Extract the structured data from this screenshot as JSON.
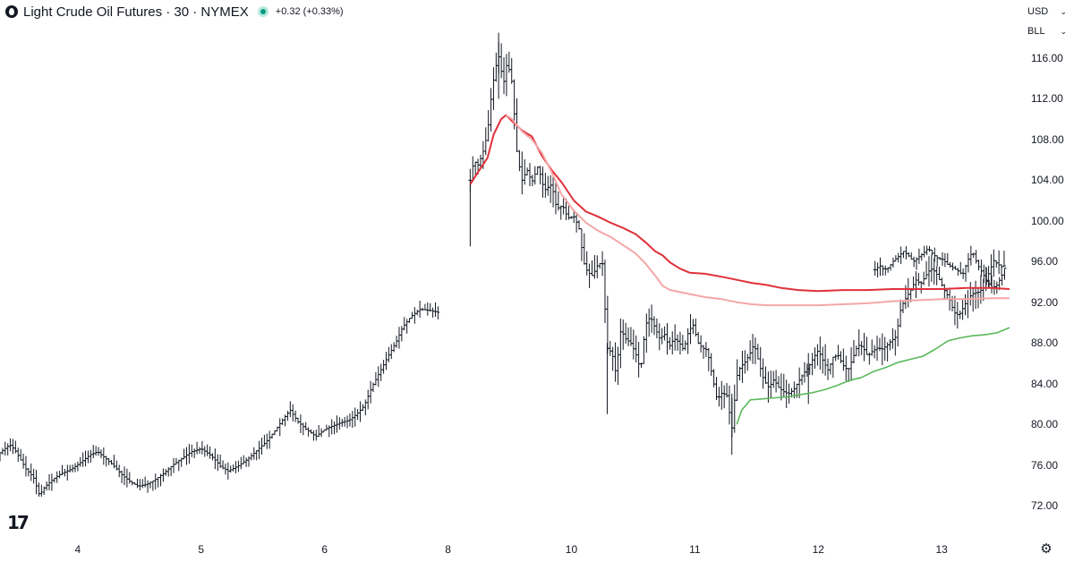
{
  "header": {
    "symbol_title": "Light Crude Oil Futures · 30 · NYMEX",
    "change": "+0.32 (+0.33%)"
  },
  "axis_controls": {
    "currency": "USD",
    "unit": "BLL"
  },
  "colors": {
    "bars": "#131722",
    "vwap_dark_red": "#e0303a",
    "vwap_light_red": "#f4a6a8",
    "vwap_green": "#5cb85c",
    "status_dot": "#089981"
  },
  "icons": {
    "logo": "tradingview-logo-icon",
    "status": "market-open-dot-icon",
    "settings": "gear-icon"
  },
  "chart_data": {
    "type": "ohlc",
    "interval": "30",
    "ylim": [
      70,
      119
    ],
    "y_ticks": [
      "116.00",
      "112.00",
      "108.00",
      "104.00",
      "100.00",
      "96.00",
      "92.00",
      "88.00",
      "84.00",
      "80.00",
      "76.00",
      "72.00"
    ],
    "x_ticks": [
      {
        "label": "4",
        "x": 0.5
      },
      {
        "label": "5",
        "x": 1.5
      },
      {
        "label": "6",
        "x": 2.5
      },
      {
        "label": "8",
        "x": 3.5
      },
      {
        "label": "10",
        "x": 4.5
      },
      {
        "label": "11",
        "x": 5.5
      },
      {
        "label": "12",
        "x": 6.5
      },
      {
        "label": "13",
        "x": 7.5
      }
    ],
    "xlim": [
      -0.13,
      8.05
    ],
    "price_path": [
      [
        -0.13,
        77.2
      ],
      [
        -0.05,
        78.0
      ],
      [
        0.0,
        77.3
      ],
      [
        0.08,
        75.6
      ],
      [
        0.14,
        74.8
      ],
      [
        0.19,
        73.0
      ],
      [
        0.23,
        73.8
      ],
      [
        0.3,
        74.6
      ],
      [
        0.36,
        75.1
      ],
      [
        0.45,
        75.6
      ],
      [
        0.53,
        76.3
      ],
      [
        0.6,
        77.0
      ],
      [
        0.66,
        77.3
      ],
      [
        0.73,
        76.6
      ],
      [
        0.8,
        75.8
      ],
      [
        0.86,
        75.0
      ],
      [
        0.93,
        74.3
      ],
      [
        0.99,
        73.9
      ],
      [
        1.06,
        74.1
      ],
      [
        1.12,
        74.5
      ],
      [
        1.2,
        75.2
      ],
      [
        1.27,
        76.0
      ],
      [
        1.34,
        76.6
      ],
      [
        1.42,
        77.3
      ],
      [
        1.5,
        77.6
      ],
      [
        1.57,
        77.0
      ],
      [
        1.62,
        76.4
      ],
      [
        1.66,
        75.8
      ],
      [
        1.72,
        75.4
      ],
      [
        1.8,
        75.9
      ],
      [
        1.88,
        76.6
      ],
      [
        1.95,
        77.4
      ],
      [
        2.02,
        78.2
      ],
      [
        2.1,
        79.4
      ],
      [
        2.17,
        80.6
      ],
      [
        2.22,
        81.4
      ],
      [
        2.28,
        80.3
      ],
      [
        2.35,
        79.5
      ],
      [
        2.43,
        78.8
      ],
      [
        2.5,
        79.5
      ],
      [
        2.58,
        79.9
      ],
      [
        2.64,
        80.2
      ],
      [
        2.7,
        80.4
      ],
      [
        2.76,
        81.0
      ],
      [
        2.82,
        81.8
      ],
      [
        2.88,
        83.6
      ],
      [
        2.95,
        85.2
      ],
      [
        3.01,
        86.6
      ],
      [
        3.08,
        88.1
      ],
      [
        3.13,
        89.5
      ],
      [
        3.2,
        90.6
      ],
      [
        3.27,
        91.3
      ],
      [
        3.35,
        91.2
      ],
      [
        3.42,
        91.0
      ]
    ],
    "price_path_2": [
      [
        3.68,
        104.0
      ],
      [
        3.71,
        106.0
      ],
      [
        3.74,
        105.4
      ],
      [
        3.78,
        106.6
      ],
      [
        3.82,
        108.6
      ],
      [
        3.85,
        112.2
      ],
      [
        3.88,
        114.8
      ],
      [
        3.91,
        116.2
      ],
      [
        3.95,
        113.5
      ],
      [
        3.98,
        115.7
      ],
      [
        4.02,
        113.5
      ],
      [
        4.06,
        106.5
      ],
      [
        4.1,
        104.0
      ],
      [
        4.14,
        105.0
      ],
      [
        4.18,
        103.8
      ],
      [
        4.23,
        105.4
      ],
      [
        4.28,
        103.0
      ],
      [
        4.34,
        103.6
      ],
      [
        4.38,
        101.2
      ],
      [
        4.43,
        101.5
      ],
      [
        4.47,
        100.3
      ],
      [
        4.52,
        100.4
      ],
      [
        4.56,
        99.4
      ],
      [
        4.6,
        95.9
      ],
      [
        4.63,
        95.0
      ],
      [
        4.67,
        94.6
      ],
      [
        4.71,
        95.6
      ],
      [
        4.75,
        96.0
      ],
      [
        4.79,
        87.5
      ],
      [
        4.83,
        87.0
      ],
      [
        4.86,
        85.0
      ],
      [
        4.9,
        89.3
      ],
      [
        4.94,
        88.4
      ],
      [
        4.98,
        88.0
      ],
      [
        5.02,
        87.0
      ],
      [
        5.06,
        85.3
      ],
      [
        5.1,
        89.8
      ],
      [
        5.14,
        90.6
      ],
      [
        5.18,
        89.4
      ],
      [
        5.22,
        88.3
      ],
      [
        5.25,
        89.0
      ],
      [
        5.29,
        87.6
      ],
      [
        5.33,
        88.4
      ],
      [
        5.37,
        88.1
      ],
      [
        5.41,
        87.3
      ],
      [
        5.45,
        89.2
      ],
      [
        5.49,
        89.8
      ],
      [
        5.52,
        88.1
      ],
      [
        5.56,
        87.5
      ],
      [
        5.6,
        87.3
      ],
      [
        5.64,
        84.8
      ],
      [
        5.68,
        82.4
      ],
      [
        5.72,
        83.1
      ],
      [
        5.76,
        82.8
      ],
      [
        5.8,
        79.5
      ],
      [
        5.84,
        84.7
      ],
      [
        5.87,
        85.7
      ],
      [
        5.9,
        86.0
      ],
      [
        5.94,
        86.8
      ],
      [
        5.98,
        87.9
      ],
      [
        6.02,
        86.0
      ],
      [
        6.06,
        84.3
      ],
      [
        6.1,
        83.6
      ],
      [
        6.14,
        84.4
      ],
      [
        6.18,
        83.6
      ],
      [
        6.22,
        83.2
      ],
      [
        6.26,
        83.0
      ],
      [
        6.3,
        83.4
      ],
      [
        6.34,
        84.2
      ],
      [
        6.38,
        85.0
      ],
      [
        6.42,
        85.6
      ],
      [
        6.46,
        86.5
      ],
      [
        6.5,
        87.3
      ],
      [
        6.54,
        86.2
      ],
      [
        6.58,
        85.3
      ],
      [
        6.62,
        86.6
      ],
      [
        6.66,
        86.8
      ],
      [
        6.7,
        85.8
      ],
      [
        6.74,
        85.3
      ],
      [
        6.78,
        86.5
      ],
      [
        6.82,
        87.8
      ],
      [
        6.86,
        87.6
      ],
      [
        6.9,
        86.7
      ],
      [
        6.94,
        87.2
      ],
      [
        6.98,
        87.5
      ],
      [
        7.02,
        87.4
      ],
      [
        7.06,
        87.8
      ],
      [
        7.09,
        88.2
      ],
      [
        7.13,
        88.6
      ],
      [
        7.17,
        91.5
      ],
      [
        7.21,
        92.4
      ],
      [
        7.25,
        93.2
      ],
      [
        7.29,
        94.2
      ],
      [
        7.33,
        93.8
      ],
      [
        7.37,
        94.6
      ],
      [
        7.41,
        95.3
      ],
      [
        7.45,
        95.0
      ],
      [
        7.49,
        94.0
      ],
      [
        7.52,
        93.2
      ],
      [
        7.56,
        92.4
      ],
      [
        7.6,
        91.0
      ],
      [
        7.64,
        90.7
      ],
      [
        7.68,
        91.6
      ],
      [
        7.72,
        92.5
      ],
      [
        7.76,
        92.9
      ],
      [
        7.8,
        93.0
      ],
      [
        7.84,
        93.4
      ],
      [
        7.88,
        94.8
      ],
      [
        7.92,
        96.1
      ],
      [
        7.96,
        95.7
      ],
      [
        8.0,
        95.4
      ],
      [
        8.02,
        96.0
      ]
    ],
    "price_path_3": [
      [
        6.96,
        95.2
      ],
      [
        7.0,
        95.6
      ],
      [
        7.03,
        95.2
      ],
      [
        7.07,
        95.4
      ],
      [
        7.11,
        96.1
      ],
      [
        7.15,
        96.5
      ],
      [
        7.19,
        97.0
      ],
      [
        7.23,
        96.6
      ],
      [
        7.27,
        96.0
      ],
      [
        7.31,
        96.4
      ],
      [
        7.35,
        96.8
      ],
      [
        7.39,
        97.3
      ],
      [
        7.43,
        96.7
      ],
      [
        7.47,
        96.3
      ],
      [
        7.51,
        96.2
      ],
      [
        7.55,
        95.7
      ],
      [
        7.59,
        95.4
      ],
      [
        7.63,
        95.1
      ],
      [
        7.67,
        94.7
      ],
      [
        7.71,
        96.1
      ],
      [
        7.75,
        97.0
      ],
      [
        7.79,
        95.7
      ],
      [
        7.83,
        94.9
      ],
      [
        7.87,
        94.0
      ],
      [
        7.91,
        93.4
      ],
      [
        7.95,
        93.7
      ],
      [
        7.99,
        94.7
      ],
      [
        8.03,
        96.0
      ]
    ],
    "series": [
      {
        "values_by_x": [
          [
            3.68,
            103.6
          ],
          [
            3.75,
            104.9
          ],
          [
            3.82,
            106.2
          ],
          [
            3.87,
            108.5
          ],
          [
            3.93,
            110.0
          ],
          [
            3.97,
            110.4
          ],
          [
            4.02,
            109.8
          ],
          [
            4.1,
            108.9
          ],
          [
            4.18,
            108.3
          ],
          [
            4.26,
            106.4
          ],
          [
            4.34,
            105.0
          ],
          [
            4.42,
            103.8
          ],
          [
            4.52,
            102.0
          ],
          [
            4.62,
            100.9
          ],
          [
            4.72,
            100.4
          ],
          [
            4.82,
            99.8
          ],
          [
            4.92,
            99.3
          ],
          [
            5.02,
            98.7
          ],
          [
            5.1,
            97.9
          ],
          [
            5.18,
            97.0
          ],
          [
            5.24,
            96.6
          ],
          [
            5.3,
            95.9
          ],
          [
            5.38,
            95.3
          ],
          [
            5.46,
            94.9
          ],
          [
            5.58,
            94.8
          ],
          [
            5.72,
            94.5
          ],
          [
            5.84,
            94.2
          ],
          [
            5.96,
            93.9
          ],
          [
            6.08,
            93.7
          ],
          [
            6.2,
            93.4
          ],
          [
            6.34,
            93.2
          ],
          [
            6.5,
            93.1
          ],
          [
            6.7,
            93.2
          ],
          [
            6.9,
            93.2
          ],
          [
            7.1,
            93.3
          ],
          [
            7.3,
            93.3
          ],
          [
            7.5,
            93.3
          ],
          [
            7.7,
            93.4
          ],
          [
            7.9,
            93.4
          ],
          [
            8.05,
            93.3
          ]
        ]
      },
      {
        "values_by_x": [
          [
            3.97,
            110.4
          ],
          [
            4.02,
            110.0
          ],
          [
            4.1,
            108.8
          ],
          [
            4.18,
            108.0
          ],
          [
            4.26,
            106.7
          ],
          [
            4.34,
            104.8
          ],
          [
            4.42,
            102.6
          ],
          [
            4.52,
            101.0
          ],
          [
            4.62,
            99.8
          ],
          [
            4.72,
            99.0
          ],
          [
            4.82,
            98.4
          ],
          [
            4.92,
            97.6
          ],
          [
            5.02,
            96.8
          ],
          [
            5.1,
            95.8
          ],
          [
            5.18,
            94.6
          ],
          [
            5.24,
            93.6
          ],
          [
            5.3,
            93.2
          ],
          [
            5.38,
            93.0
          ],
          [
            5.46,
            92.8
          ],
          [
            5.58,
            92.5
          ],
          [
            5.72,
            92.3
          ],
          [
            5.84,
            92.0
          ],
          [
            5.96,
            91.8
          ],
          [
            6.08,
            91.7
          ],
          [
            6.2,
            91.7
          ],
          [
            6.34,
            91.7
          ],
          [
            6.5,
            91.7
          ],
          [
            6.7,
            91.8
          ],
          [
            6.9,
            91.9
          ],
          [
            7.1,
            92.1
          ],
          [
            7.3,
            92.2
          ],
          [
            7.5,
            92.3
          ],
          [
            7.7,
            92.3
          ],
          [
            7.9,
            92.4
          ],
          [
            8.05,
            92.4
          ]
        ]
      },
      {
        "values_by_x": [
          [
            5.84,
            80.0
          ],
          [
            5.88,
            81.4
          ],
          [
            5.95,
            82.4
          ],
          [
            6.05,
            82.5
          ],
          [
            6.15,
            82.6
          ],
          [
            6.25,
            82.7
          ],
          [
            6.35,
            82.9
          ],
          [
            6.45,
            83.1
          ],
          [
            6.55,
            83.4
          ],
          [
            6.65,
            83.8
          ],
          [
            6.75,
            84.3
          ],
          [
            6.85,
            84.6
          ],
          [
            6.95,
            85.2
          ],
          [
            7.05,
            85.6
          ],
          [
            7.15,
            86.1
          ],
          [
            7.25,
            86.4
          ],
          [
            7.35,
            86.7
          ],
          [
            7.45,
            87.4
          ],
          [
            7.55,
            88.2
          ],
          [
            7.65,
            88.5
          ],
          [
            7.75,
            88.7
          ],
          [
            7.85,
            88.8
          ],
          [
            7.95,
            89.0
          ],
          [
            8.05,
            89.5
          ]
        ]
      }
    ]
  }
}
